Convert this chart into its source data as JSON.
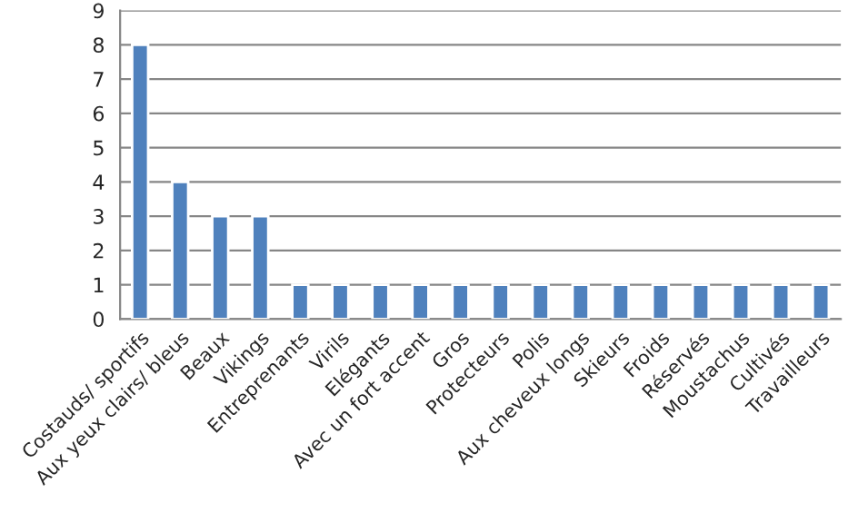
{
  "chart_data": {
    "type": "bar",
    "categories": [
      "Costauds/ sportifs",
      "Aux yeux clairs/ bleus",
      "Beaux",
      "Vikings",
      "Entreprenants",
      "Virils",
      "Elégants",
      "Avec un fort accent",
      "Gros",
      "Protecteurs",
      "Polis",
      "Aux cheveux longs",
      "Skieurs",
      "Froids",
      "Réservés",
      "Moustachus",
      "Cultivés",
      "Travailleurs"
    ],
    "values": [
      8,
      4,
      3,
      3,
      1,
      1,
      1,
      1,
      1,
      1,
      1,
      1,
      1,
      1,
      1,
      1,
      1,
      1
    ],
    "color": "#4f81bd",
    "ylim": [
      0,
      9
    ],
    "yticks": [
      0,
      1,
      2,
      3,
      4,
      5,
      6,
      7,
      8,
      9
    ],
    "grid": "y",
    "legend": false
  }
}
